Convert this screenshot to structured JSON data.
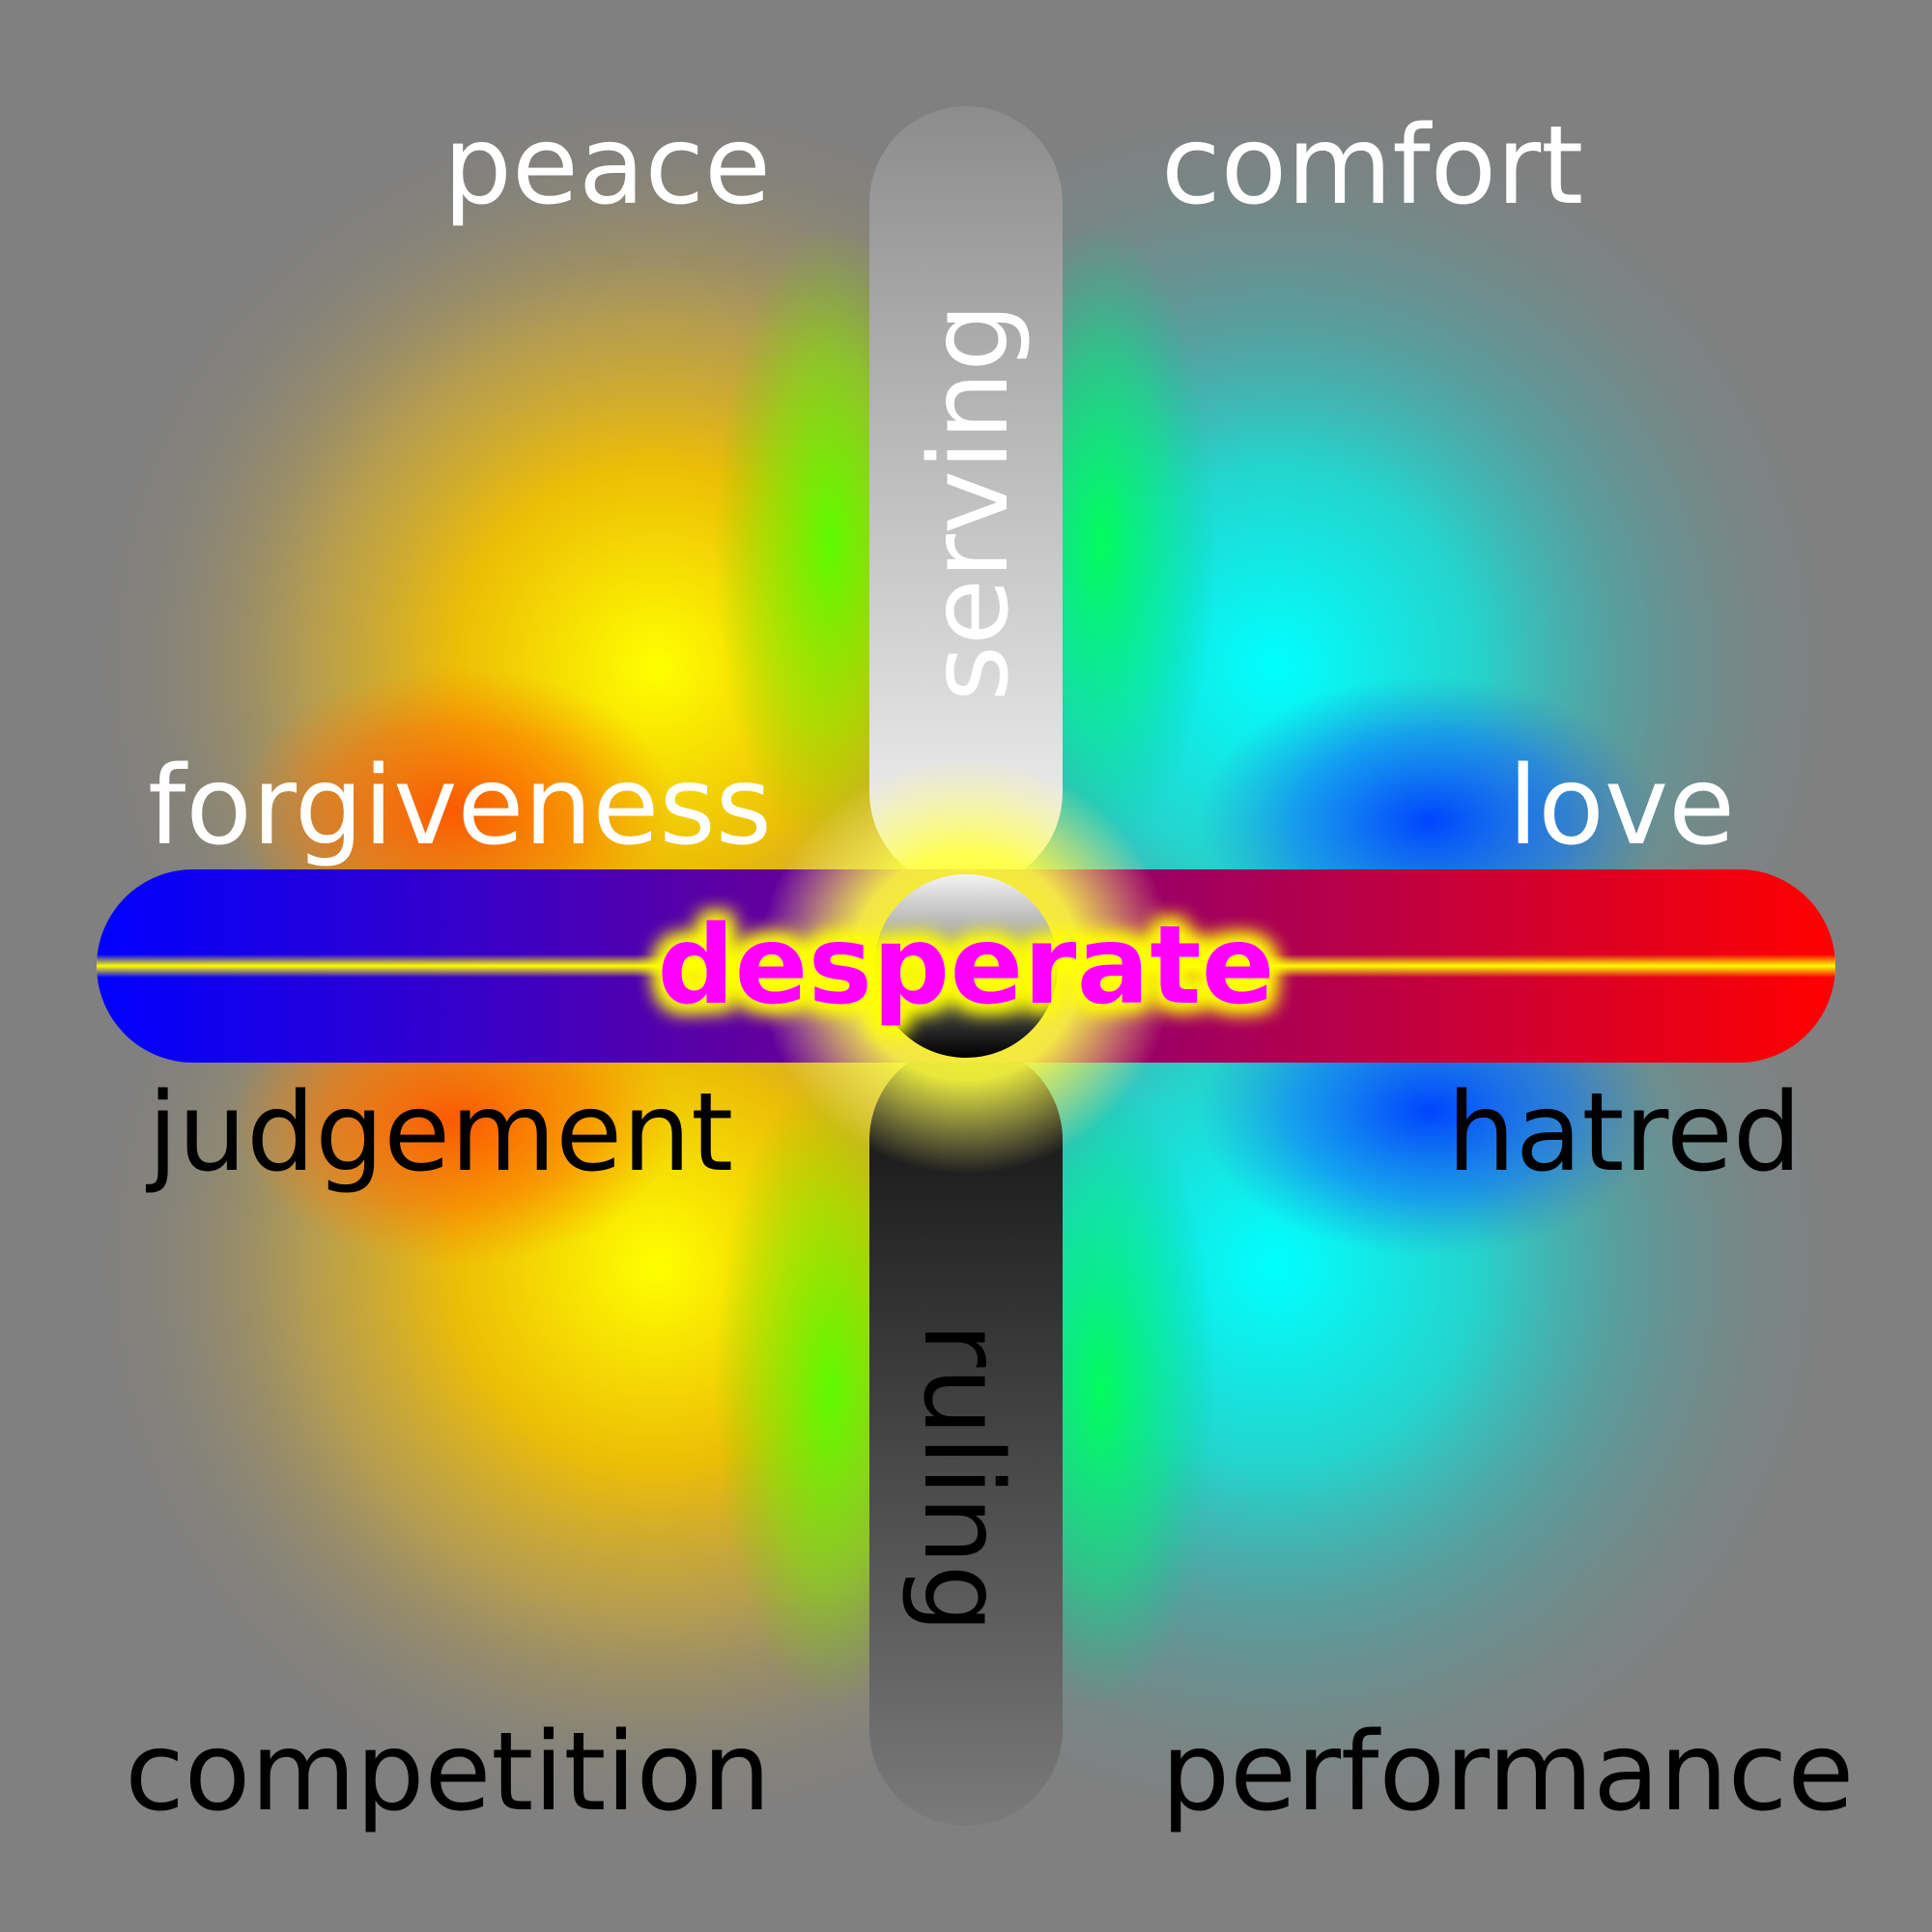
{
  "labels": {
    "top_left": "peace",
    "top_right": "comfort",
    "vertical_top": "serving",
    "vertical_bottom": "ruling",
    "mid_left_upper": "forgiveness",
    "mid_right_upper": "love",
    "center": "desperate",
    "mid_left_lower": "judgement",
    "mid_right_lower": "hatred",
    "bottom_left": "competition",
    "bottom_right": "performance"
  },
  "colors": {
    "background": "#808080",
    "label_light": "#ffffff",
    "label_dark": "#000000",
    "center_text": "#ff00ff",
    "center_glow": "#ffff00",
    "bar_left": "#0000ff",
    "bar_mid": "#7f0080",
    "bar_right": "#ff0000",
    "serving_top": "#8c8c8c",
    "serving_bottom": "#f2f2f2",
    "ruling_top": "#111111",
    "ruling_bottom": "#7a7a7a",
    "quadrant_left_core": "#ffff00",
    "quadrant_left_mid": "#ff8c00",
    "quadrant_left_edge_green": "#66ff00",
    "quadrant_right_core": "#00ffff",
    "quadrant_right_mid": "#00ff66",
    "quadrant_right_edge_blue": "#0040ff"
  }
}
